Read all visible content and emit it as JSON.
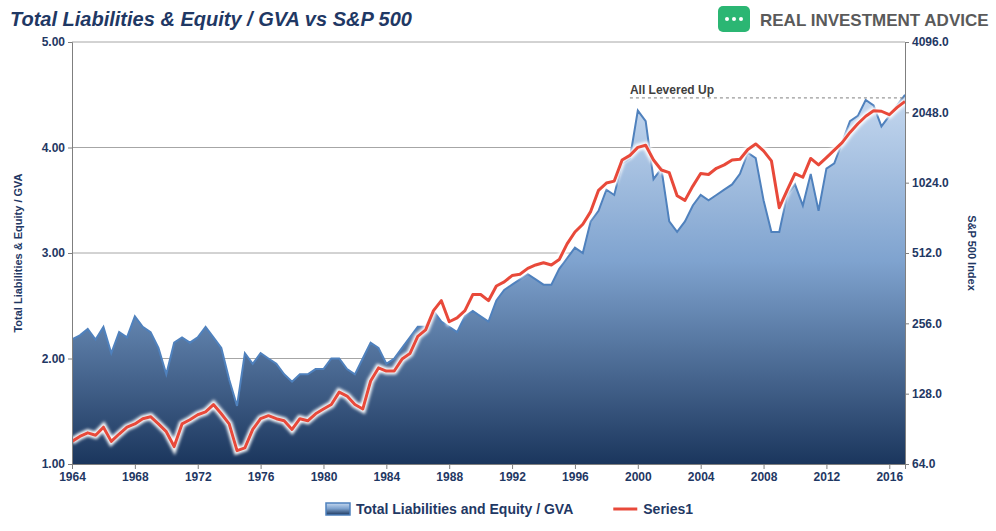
{
  "chart_data": {
    "type": "area",
    "title": "Total Liabilities & Equity / GVA vs S&P 500",
    "brand": "REAL INVESTMENT ADVICE",
    "y_label": "Total Liabilities & Equity / GVA",
    "y2_label": "S&P 500 Index",
    "x": [
      1964,
      1964.5,
      1965,
      1965.5,
      1966,
      1966.5,
      1967,
      1967.5,
      1968,
      1968.5,
      1969,
      1969.5,
      1970,
      1970.5,
      1971,
      1971.5,
      1972,
      1972.5,
      1973,
      1973.5,
      1974,
      1974.5,
      1975,
      1975.5,
      1976,
      1976.5,
      1977,
      1977.5,
      1978,
      1978.5,
      1979,
      1979.5,
      1980,
      1980.5,
      1981,
      1981.5,
      1982,
      1982.5,
      1983,
      1983.5,
      1984,
      1984.5,
      1985,
      1985.5,
      1986,
      1986.5,
      1987,
      1987.5,
      1988,
      1988.5,
      1989,
      1989.5,
      1990,
      1990.5,
      1991,
      1991.5,
      1992,
      1992.5,
      1993,
      1993.5,
      1994,
      1994.5,
      1995,
      1995.5,
      1996,
      1996.5,
      1997,
      1997.5,
      1998,
      1998.5,
      1999,
      1999.5,
      2000,
      2000.5,
      2001,
      2001.5,
      2002,
      2002.5,
      2003,
      2003.5,
      2004,
      2004.5,
      2005,
      2005.5,
      2006,
      2006.5,
      2007,
      2007.5,
      2008,
      2008.5,
      2009,
      2009.5,
      2010,
      2010.5,
      2011,
      2011.5,
      2012,
      2012.5,
      2013,
      2013.5,
      2014,
      2014.5,
      2015,
      2015.5,
      2016,
      2016.5,
      2017
    ],
    "series": [
      {
        "name": "Total Liabilities and Equity / GVA",
        "type": "area",
        "color": "#4f81bd",
        "values": [
          2.18,
          2.22,
          2.28,
          2.18,
          2.3,
          2.05,
          2.25,
          2.2,
          2.4,
          2.3,
          2.25,
          2.1,
          1.85,
          2.15,
          2.2,
          2.15,
          2.2,
          2.3,
          2.2,
          2.1,
          1.8,
          1.55,
          2.05,
          1.95,
          2.05,
          2.0,
          1.95,
          1.85,
          1.78,
          1.85,
          1.85,
          1.9,
          1.9,
          2.0,
          2.0,
          1.9,
          1.85,
          2.0,
          2.15,
          2.1,
          1.95,
          2.0,
          2.1,
          2.2,
          2.3,
          2.3,
          2.45,
          2.35,
          2.3,
          2.25,
          2.4,
          2.45,
          2.4,
          2.35,
          2.55,
          2.65,
          2.7,
          2.75,
          2.8,
          2.75,
          2.7,
          2.7,
          2.85,
          2.95,
          3.05,
          3.0,
          3.3,
          3.4,
          3.6,
          3.55,
          3.85,
          3.9,
          4.35,
          4.25,
          3.7,
          3.8,
          3.3,
          3.2,
          3.3,
          3.45,
          3.55,
          3.5,
          3.55,
          3.6,
          3.65,
          3.75,
          3.95,
          3.9,
          3.5,
          3.2,
          3.2,
          3.55,
          3.65,
          3.45,
          3.75,
          3.4,
          3.8,
          3.85,
          4.05,
          4.25,
          4.3,
          4.45,
          4.4,
          4.2,
          4.3,
          4.4,
          4.5
        ]
      },
      {
        "name": "Series1",
        "type": "line",
        "color": "#e8493a",
        "axis": "y2",
        "values": [
          80,
          84,
          87,
          85,
          92,
          80,
          86,
          92,
          95,
          100,
          102,
          95,
          88,
          76,
          95,
          99,
          104,
          107,
          115,
          105,
          95,
          73,
          75,
          90,
          100,
          103,
          100,
          98,
          90,
          100,
          98,
          105,
          110,
          115,
          130,
          125,
          115,
          110,
          145,
          165,
          160,
          160,
          180,
          190,
          225,
          240,
          290,
          320,
          260,
          270,
          290,
          340,
          340,
          320,
          370,
          385,
          410,
          415,
          440,
          455,
          465,
          455,
          480,
          560,
          630,
          680,
          770,
          950,
          1020,
          1040,
          1280,
          1340,
          1450,
          1480,
          1280,
          1160,
          1130,
          900,
          860,
          990,
          1120,
          1110,
          1180,
          1220,
          1280,
          1290,
          1420,
          1500,
          1400,
          1270,
          800,
          950,
          1120,
          1080,
          1300,
          1220,
          1310,
          1410,
          1520,
          1680,
          1830,
          1970,
          2080,
          2070,
          2000,
          2150,
          2280
        ]
      }
    ],
    "xlim": [
      1964,
      2017
    ],
    "xticks": [
      1964,
      1968,
      1972,
      1976,
      1980,
      1984,
      1988,
      1992,
      1996,
      2000,
      2004,
      2008,
      2012,
      2016
    ],
    "ylim": [
      1,
      5
    ],
    "yticks": [
      {
        "value": 1,
        "label": "1.00"
      },
      {
        "value": 2,
        "label": "2.00"
      },
      {
        "value": 3,
        "label": "3.00"
      },
      {
        "value": 4,
        "label": "4.00"
      },
      {
        "value": 5,
        "label": "5.00"
      }
    ],
    "y2lim": [
      64,
      4096
    ],
    "y2ticks": [
      {
        "value": 64,
        "label": "64.0"
      },
      {
        "value": 128,
        "label": "128.0"
      },
      {
        "value": 256,
        "label": "256.0"
      },
      {
        "value": 512,
        "label": "512.0"
      },
      {
        "value": 1024,
        "label": "1024.0"
      },
      {
        "value": 2048,
        "label": "2048.0"
      },
      {
        "value": 4096,
        "label": "4096.0"
      }
    ],
    "log": "y2",
    "grid": true,
    "legend": "bottom",
    "annotations": [
      {
        "text": "All Levered Up",
        "y": 4.47,
        "x": [
          1999.5,
          2017
        ]
      }
    ]
  }
}
